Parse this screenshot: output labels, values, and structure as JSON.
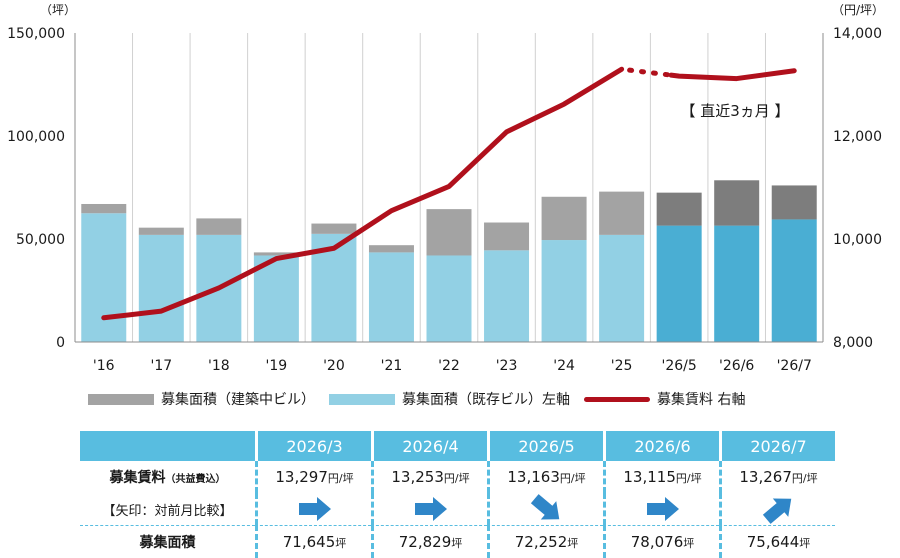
{
  "chart_data": {
    "type": "bar",
    "categories": [
      "'16",
      "'17",
      "'18",
      "'19",
      "'20",
      "'21",
      "'22",
      "'23",
      "'24",
      "'25",
      "'26/5",
      "'26/6",
      "'26/7"
    ],
    "series": [
      {
        "name": "募集面積（既存ビル）左軸",
        "type": "bar",
        "axis": "left",
        "values": [
          62500,
          52000,
          52000,
          42000,
          52500,
          43500,
          42000,
          44500,
          49500,
          52000,
          56500,
          56500,
          59500
        ],
        "colors": [
          "#92d0e4",
          "#92d0e4",
          "#92d0e4",
          "#92d0e4",
          "#92d0e4",
          "#92d0e4",
          "#92d0e4",
          "#92d0e4",
          "#92d0e4",
          "#92d0e4",
          "#4aaed3",
          "#4aaed3",
          "#4aaed3"
        ]
      },
      {
        "name": "募集面積（建築中ビル）",
        "type": "bar",
        "axis": "left",
        "values": [
          4500,
          3500,
          8000,
          1500,
          5000,
          3500,
          22500,
          13500,
          21000,
          21000,
          16000,
          22000,
          16500
        ],
        "colors": [
          "#a3a3a3",
          "#a3a3a3",
          "#a3a3a3",
          "#a3a3a3",
          "#a3a3a3",
          "#a3a3a3",
          "#a3a3a3",
          "#a3a3a3",
          "#a3a3a3",
          "#a3a3a3",
          "#7d7d7d",
          "#7d7d7d",
          "#7d7d7d"
        ]
      },
      {
        "name": "募集賃料 右軸",
        "type": "line",
        "axis": "right",
        "values": [
          8470,
          8600,
          9050,
          9620,
          9820,
          10550,
          11020,
          12080,
          12620,
          13297,
          13163,
          13115,
          13267
        ]
      }
    ],
    "left_axis": {
      "unit_label": "（坪）",
      "ylim": [
        0,
        150000
      ],
      "ticks": [
        "0",
        "50,000",
        "100,000",
        "150,000"
      ]
    },
    "right_axis": {
      "unit_label": "（円/坪）",
      "ylim": [
        8000,
        14000
      ],
      "ticks": [
        "8,000",
        "10,000",
        "12,000",
        "14,000"
      ]
    },
    "annotation": "【 直近3ヵ月 】",
    "line_color": "#b0101c",
    "grid": "vertical"
  },
  "legend": [
    {
      "label": "募集面積（建築中ビル）",
      "kind": "bar",
      "color": "#a3a3a3"
    },
    {
      "label": "募集面積（既存ビル）左軸",
      "kind": "bar",
      "color": "#92d0e4"
    },
    {
      "label": "募集賃料 右軸",
      "kind": "line",
      "color": "#b0101c"
    }
  ],
  "summary_table": {
    "months": [
      "2026/3",
      "2026/4",
      "2026/5",
      "2026/6",
      "2026/7"
    ],
    "rent_label": "募集賃料",
    "rent_sub": "（共益費込）",
    "arrow_label": "【矢印：対前月比較】",
    "area_label": "募集面積",
    "rent_values": [
      "13,297",
      "13,253",
      "13,163",
      "13,115",
      "13,267"
    ],
    "rent_unit": "円/坪",
    "arrow_directions": [
      "right",
      "right",
      "down-right",
      "right",
      "up-right"
    ],
    "area_values": [
      "71,645",
      "72,829",
      "72,252",
      "78,076",
      "75,644"
    ],
    "area_unit": "坪",
    "arrow_color": "#2f86c8"
  }
}
